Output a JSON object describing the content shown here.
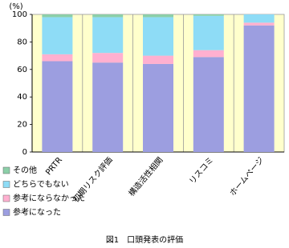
{
  "chart_data": {
    "type": "stacked-bar",
    "y_label": "(%)",
    "caption": "図1　口頭発表の評価",
    "categories": [
      "PRTR",
      "初期リスク評価",
      "構造活性相関",
      "リスコミ",
      "ホームページ"
    ],
    "series": [
      {
        "name": "参考になった",
        "color": "#9c9ee0",
        "values": [
          66,
          65,
          64,
          69,
          92
        ]
      },
      {
        "name": "参考にならなかった",
        "color": "#ffb0d0",
        "values": [
          5,
          7,
          6,
          5,
          2
        ]
      },
      {
        "name": "どちらでもない",
        "color": "#8edcf6",
        "values": [
          27,
          26,
          28,
          25,
          6
        ]
      },
      {
        "name": "その他",
        "color": "#8ccfa8",
        "values": [
          2,
          2,
          2,
          1,
          0
        ]
      }
    ],
    "ylim": [
      0,
      100
    ],
    "yticks": [
      0,
      20,
      40,
      60,
      80,
      100
    ],
    "background": "#ffffcc"
  }
}
